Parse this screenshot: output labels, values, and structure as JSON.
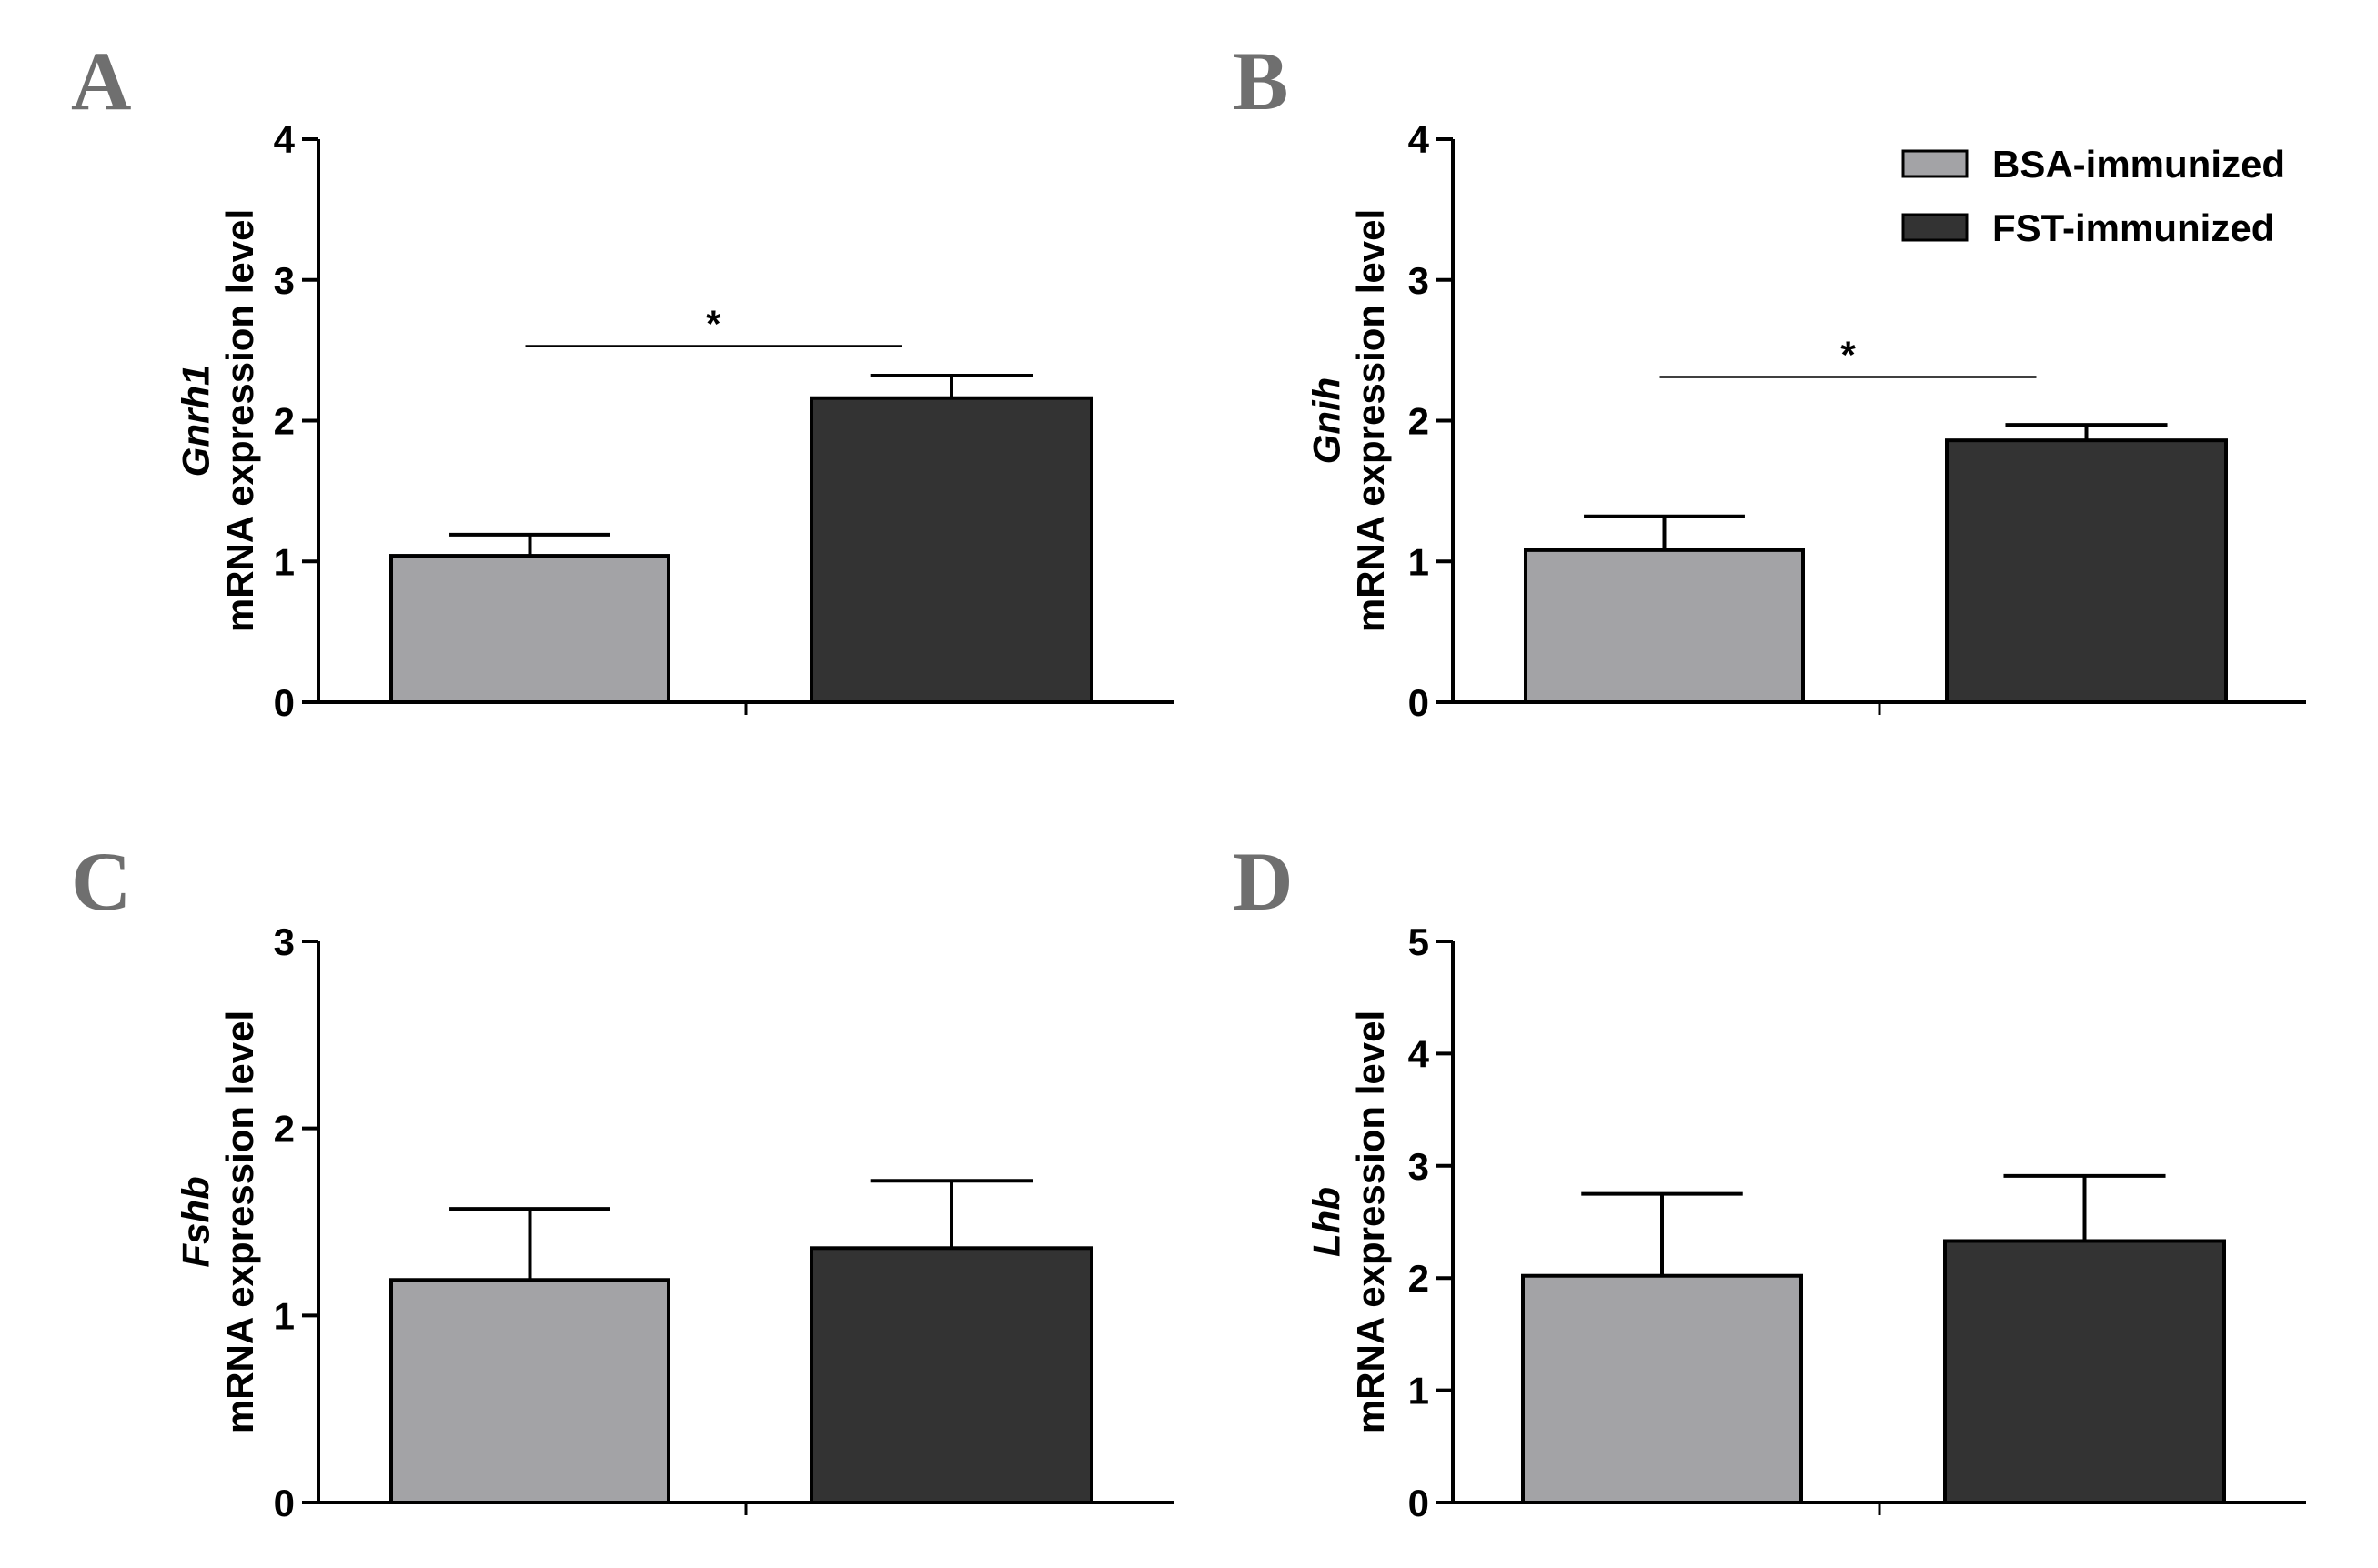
{
  "colors": {
    "bsa": "#a3a3a6",
    "fst": "#333333",
    "axis": "#000000",
    "letter": "#6f6f6f"
  },
  "legend": [
    {
      "name": "BSA-immunized",
      "color": "#a3a3a6"
    },
    {
      "name": "FST-immunized",
      "color": "#333333"
    }
  ],
  "chart_data": [
    {
      "panel": "A",
      "type": "bar",
      "gene": "Gnrh1",
      "ylabel": "mRNA expression level",
      "ylim": [
        0,
        4
      ],
      "yticks": [
        "0",
        "1",
        "2",
        "3",
        "4"
      ],
      "series": [
        {
          "name": "BSA-immunized",
          "value": 1.04,
          "error": 0.15
        },
        {
          "name": "FST-immunized",
          "value": 2.16,
          "error": 0.16
        }
      ],
      "significance": {
        "label": "*",
        "level": 2.53
      }
    },
    {
      "panel": "B",
      "type": "bar",
      "gene": "Gnih",
      "ylabel": "mRNA expression level",
      "ylim": [
        0,
        4
      ],
      "yticks": [
        "0",
        "1",
        "2",
        "3",
        "4"
      ],
      "series": [
        {
          "name": "BSA-immunized",
          "value": 1.08,
          "error": 0.24
        },
        {
          "name": "FST-immunized",
          "value": 1.86,
          "error": 0.11
        }
      ],
      "significance": {
        "label": "*",
        "level": 2.31
      }
    },
    {
      "panel": "C",
      "type": "bar",
      "gene": "Fshb",
      "ylabel": "mRNA expression level",
      "ylim": [
        0,
        3
      ],
      "yticks": [
        "0",
        "1",
        "2",
        "3"
      ],
      "series": [
        {
          "name": "BSA-immunized",
          "value": 1.19,
          "error": 0.38
        },
        {
          "name": "FST-immunized",
          "value": 1.36,
          "error": 0.36
        }
      ]
    },
    {
      "panel": "D",
      "type": "bar",
      "gene": "Lhb",
      "ylabel": "mRNA expression level",
      "ylim": [
        0,
        5
      ],
      "yticks": [
        "0",
        "1",
        "2",
        "3",
        "4",
        "5"
      ],
      "series": [
        {
          "name": "BSA-immunized",
          "value": 2.02,
          "error": 0.73
        },
        {
          "name": "FST-immunized",
          "value": 2.33,
          "error": 0.58
        }
      ]
    }
  ]
}
